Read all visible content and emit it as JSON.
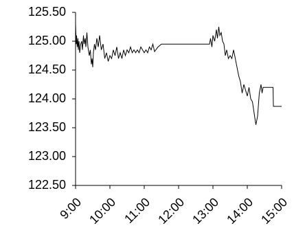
{
  "chart_data": {
    "type": "line",
    "x": [
      9.0,
      9.02,
      9.03,
      9.05,
      9.07,
      9.08,
      9.1,
      9.12,
      9.15,
      9.18,
      9.2,
      9.23,
      9.25,
      9.28,
      9.3,
      9.33,
      9.36,
      9.4,
      9.43,
      9.46,
      9.48,
      9.5,
      9.52,
      9.55,
      9.58,
      9.62,
      9.66,
      9.7,
      9.75,
      9.8,
      9.85,
      9.9,
      9.95,
      10.0,
      10.05,
      10.1,
      10.15,
      10.2,
      10.25,
      10.3,
      10.35,
      10.4,
      10.45,
      10.5,
      10.55,
      10.6,
      10.65,
      10.7,
      10.75,
      10.8,
      10.85,
      10.9,
      10.95,
      11.0,
      11.05,
      11.1,
      11.15,
      11.2,
      11.25,
      11.3,
      11.4,
      11.5,
      12.9,
      12.93,
      12.97,
      13.0,
      13.05,
      13.1,
      13.13,
      13.17,
      13.2,
      13.24,
      13.28,
      13.32,
      13.36,
      13.4,
      13.45,
      13.5,
      13.55,
      13.6,
      13.65,
      13.7,
      13.75,
      13.8,
      13.85,
      13.9,
      13.95,
      14.0,
      14.05,
      14.1,
      14.15,
      14.2,
      14.25,
      14.3,
      14.35,
      14.4,
      14.43,
      14.46,
      14.75,
      14.76,
      15.0
    ],
    "series": [
      {
        "color": "#000000",
        "values": [
          125.3,
          124.95,
          125.1,
          124.9,
          125.05,
          124.85,
          125.0,
          124.8,
          124.95,
          125.0,
          124.85,
          125.1,
          124.95,
          125.05,
          124.9,
          125.15,
          124.9,
          124.75,
          124.85,
          124.6,
          124.7,
          124.55,
          124.8,
          124.95,
          124.85,
          125.05,
          124.9,
          125.1,
          124.85,
          124.95,
          124.7,
          124.8,
          124.65,
          124.75,
          124.7,
          124.85,
          124.75,
          124.9,
          124.7,
          124.8,
          124.7,
          124.85,
          124.75,
          124.85,
          124.8,
          124.9,
          124.8,
          124.85,
          124.8,
          124.85,
          124.8,
          124.9,
          124.85,
          124.8,
          124.85,
          124.8,
          124.9,
          124.85,
          124.95,
          124.82,
          124.9,
          124.95,
          124.95,
          125.05,
          124.9,
          125.1,
          125.0,
          125.2,
          125.05,
          125.25,
          125.1,
          125.15,
          125.0,
          124.95,
          124.75,
          124.85,
          124.7,
          124.75,
          124.7,
          124.85,
          124.7,
          124.55,
          124.4,
          124.3,
          124.1,
          124.25,
          124.15,
          124.05,
          124.2,
          124.0,
          123.95,
          123.75,
          123.55,
          123.7,
          124.1,
          124.25,
          124.1,
          124.2,
          124.2,
          123.87,
          123.87
        ]
      }
    ],
    "xlim": [
      9,
      15
    ],
    "xticks": [
      {
        "value": 9,
        "label": "9:00"
      },
      {
        "value": 10,
        "label": "10:00"
      },
      {
        "value": 11,
        "label": "11:00"
      },
      {
        "value": 12,
        "label": "12:00"
      },
      {
        "value": 13,
        "label": "13:00"
      },
      {
        "value": 14,
        "label": "14:00"
      },
      {
        "value": 15,
        "label": "15:00"
      }
    ],
    "ylim": [
      122.5,
      125.5
    ],
    "yticks": [
      {
        "value": 122.5,
        "label": "122.50"
      },
      {
        "value": 123,
        "label": "123.00"
      },
      {
        "value": 123.5,
        "label": "123.50"
      },
      {
        "value": 124,
        "label": "124.00"
      },
      {
        "value": 124.5,
        "label": "124.50"
      },
      {
        "value": 125,
        "label": "125.00"
      },
      {
        "value": 125.5,
        "label": "125.50"
      }
    ]
  }
}
